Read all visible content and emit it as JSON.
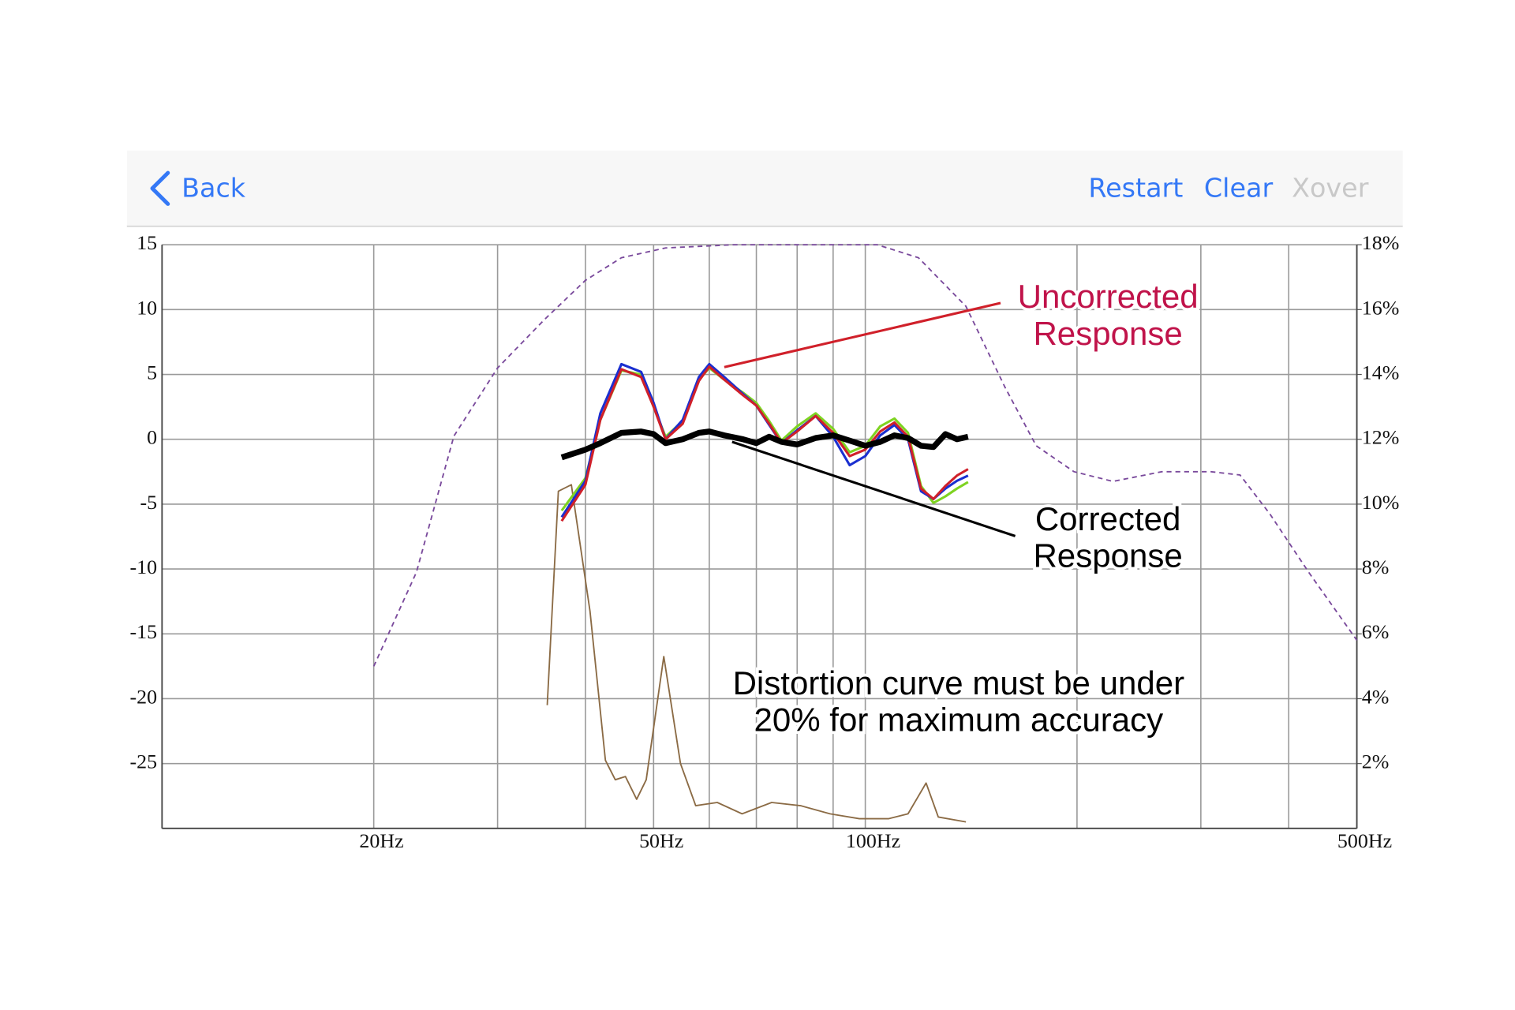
{
  "nav": {
    "back": "Back",
    "restart": "Restart",
    "clear": "Clear",
    "xover": "Xover"
  },
  "chart_data": {
    "type": "line",
    "xscale": "log",
    "xlim": [
      10,
      500
    ],
    "xticks": [
      {
        "value": 20,
        "label": "20Hz"
      },
      {
        "value": 50,
        "label": "50Hz"
      },
      {
        "value": 100,
        "label": "100Hz"
      },
      {
        "value": 500,
        "label": "500Hz"
      }
    ],
    "x_minor_ticks": [
      30,
      40,
      60,
      70,
      80,
      90,
      200,
      300,
      400
    ],
    "ylim": [
      -30,
      15
    ],
    "yticks": [
      15,
      10,
      5,
      0,
      -5,
      -10,
      -15,
      -20,
      -25
    ],
    "y2lim": [
      0,
      18
    ],
    "y2ticks": [
      {
        "value": 18,
        "label": "18%"
      },
      {
        "value": 16,
        "label": "16%"
      },
      {
        "value": 14,
        "label": "14%"
      },
      {
        "value": 12,
        "label": "12%"
      },
      {
        "value": 10,
        "label": "10%"
      },
      {
        "value": 8,
        "label": "8%"
      },
      {
        "value": 6,
        "label": "6%"
      },
      {
        "value": 4,
        "label": "4%"
      },
      {
        "value": 2,
        "label": "2%"
      }
    ],
    "grid": true,
    "series": [
      {
        "color": "#7a4a9c",
        "dashed": true,
        "axis": "y2",
        "width": 1.5,
        "x": [
          20,
          23,
          26,
          30,
          35,
          40,
          45,
          52,
          65,
          104,
          119,
          139,
          158,
          175,
          198,
          225,
          264,
          310,
          341,
          376,
          427,
          500
        ],
        "values": [
          5.0,
          7.9,
          12.1,
          14.2,
          15.7,
          16.9,
          17.6,
          17.9,
          18,
          18,
          17.6,
          16.1,
          13.6,
          11.8,
          11.0,
          10.7,
          11.0,
          11.0,
          10.9,
          9.7,
          7.9,
          5.8
        ]
      },
      {
        "color": "#8b6b45",
        "axis": "y2",
        "width": 1.5,
        "x": [
          35.3,
          36.6,
          38.2,
          40.6,
          42.7,
          44.1,
          45.6,
          47.3,
          48.8,
          51.7,
          54.6,
          57.4,
          61.6,
          66.8,
          73.6,
          80.9,
          89.1,
          98.1,
          108,
          115,
          122,
          127,
          139
        ],
        "values": [
          3.8,
          10.4,
          10.6,
          6.7,
          2.1,
          1.5,
          1.6,
          0.9,
          1.5,
          5.3,
          2.0,
          0.7,
          0.8,
          0.45,
          0.8,
          0.7,
          0.45,
          0.3,
          0.3,
          0.45,
          1.4,
          0.35,
          0.2
        ]
      },
      {
        "color": "#7ed321",
        "width": 2.5,
        "x": [
          37,
          40,
          42,
          45,
          48,
          50,
          52,
          55,
          58,
          60,
          63,
          67,
          70,
          73,
          76,
          80,
          85,
          90,
          95,
          100,
          105,
          110,
          115,
          120,
          125,
          130,
          135,
          140
        ],
        "values": [
          -5.5,
          -3.0,
          1.5,
          5.3,
          5.0,
          2.5,
          0.2,
          1.4,
          4.6,
          5.5,
          4.6,
          3.6,
          2.8,
          1.4,
          -0.1,
          1.0,
          2.0,
          0.8,
          -1.0,
          -0.5,
          1.0,
          1.6,
          0.5,
          -3.6,
          -4.9,
          -4.4,
          -3.8,
          -3.3
        ]
      },
      {
        "color": "#1a2fd0",
        "width": 2.5,
        "x": [
          37,
          40,
          42,
          45,
          48,
          50,
          52,
          55,
          58,
          60,
          63,
          67,
          70,
          73,
          76,
          80,
          85,
          90,
          95,
          100,
          105,
          110,
          115,
          120,
          125,
          130,
          135,
          140
        ],
        "values": [
          -6.0,
          -3.2,
          2.0,
          5.8,
          5.2,
          2.8,
          0,
          1.5,
          4.8,
          5.8,
          4.8,
          3.5,
          2.6,
          1.1,
          -0.3,
          0.7,
          1.8,
          0.2,
          -2.0,
          -1.3,
          0.3,
          1.1,
          0.0,
          -4.0,
          -4.6,
          -3.8,
          -3.2,
          -2.8
        ]
      },
      {
        "color": "#d0202a",
        "width": 2.5,
        "x": [
          37,
          40,
          42,
          45,
          48,
          50,
          52,
          55,
          58,
          60,
          63,
          67,
          70,
          73,
          76,
          80,
          85,
          90,
          95,
          100,
          105,
          110,
          115,
          120,
          125,
          130,
          135,
          140
        ],
        "values": [
          -6.3,
          -3.5,
          1.5,
          5.4,
          4.8,
          2.5,
          0,
          1.2,
          4.5,
          5.6,
          4.6,
          3.4,
          2.6,
          1.2,
          -0.3,
          0.6,
          1.8,
          0.5,
          -1.3,
          -0.8,
          0.6,
          1.3,
          0.2,
          -3.8,
          -4.6,
          -3.6,
          -2.8,
          -2.3
        ]
      },
      {
        "color": "#000000",
        "width": 6,
        "x": [
          37,
          40,
          42,
          45,
          48,
          50,
          52,
          55,
          58,
          60,
          63,
          67,
          70,
          73,
          76,
          80,
          85,
          90,
          95,
          100,
          105,
          110,
          115,
          120,
          125,
          130,
          135,
          140
        ],
        "values": [
          -1.4,
          -0.8,
          -0.3,
          0.5,
          0.6,
          0.4,
          -0.3,
          0,
          0.5,
          0.6,
          0.3,
          0,
          -0.3,
          0.2,
          -0.2,
          -0.4,
          0.1,
          0.3,
          -0.1,
          -0.5,
          -0.2,
          0.3,
          0.1,
          -0.5,
          -0.6,
          0.4,
          0,
          0.2
        ]
      }
    ],
    "annotations": [
      {
        "lines": [
          "Uncorrected",
          "Response"
        ],
        "color": "#c0134a"
      },
      {
        "lines": [
          "Corrected",
          "Response"
        ],
        "color": "#000000"
      },
      {
        "lines": [
          "Distortion curve must be under",
          "20% for maximum accuracy"
        ],
        "color": "#000000"
      }
    ]
  }
}
